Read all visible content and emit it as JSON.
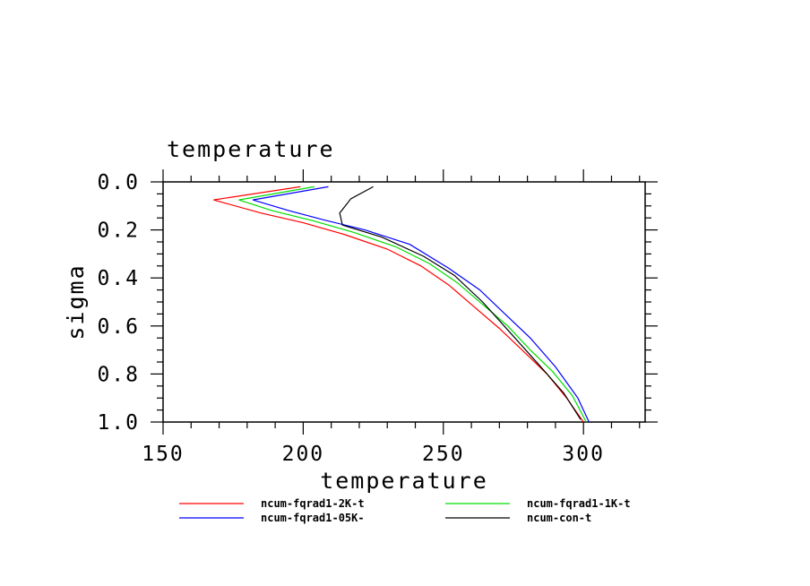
{
  "chart_data": {
    "type": "line",
    "title": "temperature",
    "xlabel": "temperature",
    "ylabel": "sigma",
    "xlim": [
      150,
      322
    ],
    "ylim": [
      0,
      1
    ],
    "y_inverted": true,
    "xticks": [
      150,
      200,
      250,
      300
    ],
    "yticks": [
      0.0,
      0.2,
      0.4,
      0.6,
      0.8,
      1.0
    ],
    "xtick_labels": [
      "150",
      "200",
      "250",
      "300"
    ],
    "ytick_labels": [
      "0.0",
      "0.2",
      "0.4",
      "0.6",
      "0.8",
      "1.0"
    ],
    "legend_position": "below",
    "series": [
      {
        "name": "ncum-fqrad1-2K-t",
        "color": "#ff0000",
        "points": [
          [
            199,
            0.02
          ],
          [
            168,
            0.075
          ],
          [
            185,
            0.13
          ],
          [
            200,
            0.17
          ],
          [
            215,
            0.22
          ],
          [
            230,
            0.28
          ],
          [
            242,
            0.35
          ],
          [
            252,
            0.43
          ],
          [
            261,
            0.52
          ],
          [
            270,
            0.61
          ],
          [
            279,
            0.71
          ],
          [
            287,
            0.8
          ],
          [
            294,
            0.9
          ],
          [
            300,
            1.0
          ]
        ]
      },
      {
        "name": "ncum-fqrad1-1K-t",
        "color": "#00dd00",
        "points": [
          [
            204,
            0.02
          ],
          [
            177,
            0.075
          ],
          [
            189,
            0.12
          ],
          [
            203,
            0.16
          ],
          [
            218,
            0.21
          ],
          [
            233,
            0.27
          ],
          [
            245,
            0.34
          ],
          [
            255,
            0.42
          ],
          [
            264,
            0.51
          ],
          [
            273,
            0.6
          ],
          [
            281,
            0.7
          ],
          [
            289,
            0.79
          ],
          [
            296,
            0.89
          ],
          [
            301,
            1.0
          ]
        ]
      },
      {
        "name": "ncum-fqrad1-05K-",
        "color": "#0000ff",
        "points": [
          [
            209,
            0.02
          ],
          [
            182,
            0.075
          ],
          [
            195,
            0.12
          ],
          [
            208,
            0.16
          ],
          [
            222,
            0.2
          ],
          [
            238,
            0.26
          ],
          [
            252,
            0.36
          ],
          [
            263,
            0.45
          ],
          [
            272,
            0.55
          ],
          [
            281,
            0.65
          ],
          [
            290,
            0.77
          ],
          [
            298,
            0.9
          ],
          [
            302,
            1.0
          ]
        ]
      },
      {
        "name": "ncum-con-t",
        "color": "#000000",
        "points": [
          [
            225,
            0.02
          ],
          [
            217,
            0.07
          ],
          [
            213,
            0.13
          ],
          [
            214,
            0.18
          ],
          [
            228,
            0.23
          ],
          [
            243,
            0.31
          ],
          [
            254,
            0.39
          ],
          [
            264,
            0.5
          ],
          [
            274,
            0.63
          ],
          [
            284,
            0.76
          ],
          [
            293,
            0.88
          ],
          [
            299,
            0.99
          ]
        ]
      }
    ]
  }
}
